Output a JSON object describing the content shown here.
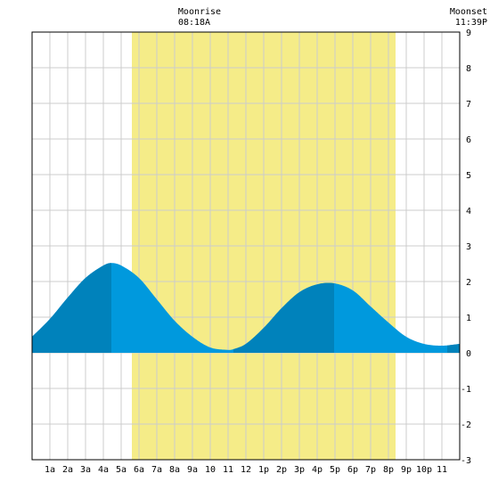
{
  "chart_data": {
    "type": "area",
    "title": "",
    "xlabel": "",
    "ylabel": "",
    "xlim": [
      0,
      24
    ],
    "ylim": [
      -3,
      9
    ],
    "y_ticks": [
      -3,
      -2,
      -1,
      0,
      1,
      2,
      3,
      4,
      5,
      6,
      7,
      8,
      9
    ],
    "x_ticks": [
      {
        "hour": 1,
        "label": "1a"
      },
      {
        "hour": 2,
        "label": "2a"
      },
      {
        "hour": 3,
        "label": "3a"
      },
      {
        "hour": 4,
        "label": "4a"
      },
      {
        "hour": 5,
        "label": "5a"
      },
      {
        "hour": 6,
        "label": "6a"
      },
      {
        "hour": 7,
        "label": "7a"
      },
      {
        "hour": 8,
        "label": "8a"
      },
      {
        "hour": 9,
        "label": "9a"
      },
      {
        "hour": 10,
        "label": "10"
      },
      {
        "hour": 11,
        "label": "11"
      },
      {
        "hour": 12,
        "label": "12"
      },
      {
        "hour": 13,
        "label": "1p"
      },
      {
        "hour": 14,
        "label": "2p"
      },
      {
        "hour": 15,
        "label": "3p"
      },
      {
        "hour": 16,
        "label": "4p"
      },
      {
        "hour": 17,
        "label": "5p"
      },
      {
        "hour": 18,
        "label": "6p"
      },
      {
        "hour": 19,
        "label": "7p"
      },
      {
        "hour": 20,
        "label": "8p"
      },
      {
        "hour": 21,
        "label": "9p"
      },
      {
        "hour": 22,
        "label": "10p"
      },
      {
        "hour": 23,
        "label": "11"
      }
    ],
    "grid": true,
    "moon_band": {
      "start_hour": 5.6,
      "end_hour": 20.4,
      "color": "#f5ec88"
    },
    "moonrise": {
      "label": "Moonrise",
      "time": "08:18A"
    },
    "moonset": {
      "label": "Moonset",
      "time": "11:39P"
    },
    "series": [
      {
        "x": [
          0,
          1,
          2,
          3,
          4,
          4.45,
          5,
          6,
          7,
          8,
          9,
          10,
          11,
          11.3,
          12,
          13,
          14,
          15,
          16,
          16.95,
          18,
          19,
          20,
          21,
          22,
          23,
          24
        ],
        "y": [
          0.45,
          0.95,
          1.55,
          2.1,
          2.45,
          2.52,
          2.45,
          2.1,
          1.5,
          0.9,
          0.45,
          0.15,
          0.08,
          0.1,
          0.25,
          0.7,
          1.25,
          1.7,
          1.92,
          1.95,
          1.75,
          1.3,
          0.85,
          0.45,
          0.25,
          0.2,
          0.25
        ]
      }
    ],
    "dark_segments": [
      [
        0,
        4.45
      ],
      [
        11.3,
        16.95
      ],
      [
        23.3,
        24
      ]
    ],
    "colors": {
      "fill": "#0099dd",
      "fill_dark": "#0082bb",
      "grid": "#cccccc",
      "frame": "#000000"
    }
  }
}
